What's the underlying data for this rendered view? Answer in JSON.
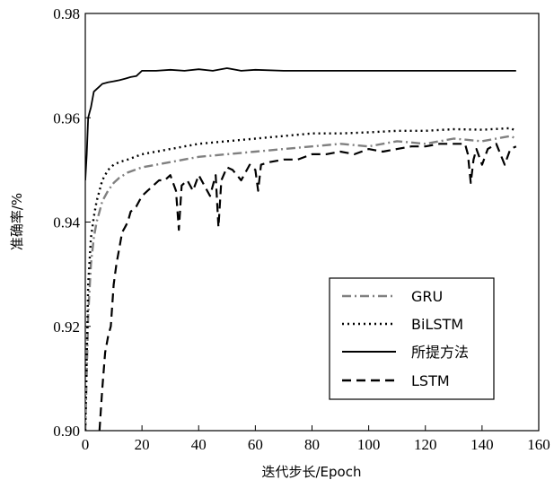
{
  "chart_data": {
    "type": "line",
    "title": "",
    "xlabel": "迭代步长/Epoch",
    "ylabel": "准确率/%",
    "xlim": [
      0,
      160
    ],
    "ylim": [
      0.9,
      0.98
    ],
    "x_ticks": [
      "0",
      "20",
      "40",
      "60",
      "80",
      "100",
      "120",
      "140",
      "160"
    ],
    "y_ticks": [
      "0.90",
      "0.92",
      "0.94",
      "0.96",
      "0.98"
    ],
    "x_tick_values": [
      0,
      20,
      40,
      60,
      80,
      100,
      120,
      140,
      160
    ],
    "y_tick_values": [
      0.9,
      0.92,
      0.94,
      0.96,
      0.98
    ],
    "grid": false,
    "legend_position": "bottom-right",
    "series": [
      {
        "name": "GRU",
        "color": "#808080",
        "dash": "dash-dot",
        "x": [
          0,
          1,
          2,
          3,
          4,
          5,
          6,
          8,
          10,
          12,
          15,
          20,
          25,
          30,
          40,
          50,
          60,
          70,
          80,
          90,
          100,
          110,
          120,
          130,
          140,
          150,
          152
        ],
        "y": [
          0.9,
          0.922,
          0.932,
          0.937,
          0.94,
          0.942,
          0.944,
          0.946,
          0.9475,
          0.9485,
          0.9495,
          0.9505,
          0.951,
          0.9515,
          0.9525,
          0.953,
          0.9535,
          0.954,
          0.9545,
          0.955,
          0.9545,
          0.9555,
          0.955,
          0.956,
          0.9555,
          0.9565,
          0.956
        ]
      },
      {
        "name": "BiLSTM",
        "color": "#000000",
        "dash": "dotted",
        "x": [
          0,
          1,
          2,
          3,
          4,
          5,
          6,
          8,
          10,
          12,
          15,
          20,
          25,
          30,
          40,
          50,
          60,
          70,
          80,
          90,
          100,
          110,
          120,
          130,
          140,
          150,
          152
        ],
        "y": [
          0.9,
          0.928,
          0.937,
          0.941,
          0.944,
          0.946,
          0.948,
          0.95,
          0.951,
          0.9515,
          0.952,
          0.953,
          0.9535,
          0.954,
          0.955,
          0.9555,
          0.956,
          0.9565,
          0.957,
          0.957,
          0.9572,
          0.9575,
          0.9575,
          0.9578,
          0.9577,
          0.958,
          0.9575
        ]
      },
      {
        "name": "所提方法",
        "color": "#000000",
        "dash": "solid",
        "x": [
          0,
          0.5,
          1,
          1.5,
          2,
          3,
          4,
          5,
          6,
          8,
          10,
          12,
          14,
          16,
          18,
          20,
          25,
          30,
          35,
          40,
          45,
          50,
          55,
          60,
          70,
          80,
          90,
          100,
          110,
          120,
          130,
          140,
          150,
          152
        ],
        "y": [
          0.948,
          0.953,
          0.96,
          0.961,
          0.962,
          0.965,
          0.9655,
          0.966,
          0.9665,
          0.9668,
          0.967,
          0.9672,
          0.9675,
          0.9678,
          0.968,
          0.969,
          0.969,
          0.9692,
          0.969,
          0.9693,
          0.969,
          0.9695,
          0.969,
          0.9692,
          0.969,
          0.969,
          0.969,
          0.969,
          0.969,
          0.969,
          0.969,
          0.969,
          0.969,
          0.969
        ]
      },
      {
        "name": "LSTM",
        "color": "#000000",
        "dash": "dashed",
        "x": [
          5,
          6,
          7,
          8,
          9,
          10,
          11,
          12,
          13,
          14,
          15,
          16,
          18,
          20,
          22,
          24,
          26,
          28,
          30,
          32,
          33,
          34,
          36,
          38,
          40,
          42,
          44,
          46,
          47,
          48,
          50,
          52,
          55,
          58,
          60,
          61,
          62,
          65,
          70,
          75,
          80,
          85,
          90,
          95,
          100,
          105,
          110,
          115,
          120,
          125,
          130,
          134,
          135,
          136,
          137,
          138,
          140,
          142,
          145,
          148,
          150,
          152
        ],
        "y": [
          0.9,
          0.908,
          0.915,
          0.918,
          0.92,
          0.928,
          0.932,
          0.935,
          0.938,
          0.939,
          0.94,
          0.942,
          0.943,
          0.945,
          0.946,
          0.947,
          0.948,
          0.948,
          0.949,
          0.946,
          0.9385,
          0.947,
          0.948,
          0.946,
          0.949,
          0.947,
          0.945,
          0.949,
          0.939,
          0.948,
          0.9505,
          0.95,
          0.948,
          0.951,
          0.95,
          0.946,
          0.951,
          0.9515,
          0.952,
          0.952,
          0.953,
          0.953,
          0.9535,
          0.953,
          0.954,
          0.9535,
          0.954,
          0.9545,
          0.9545,
          0.955,
          0.955,
          0.955,
          0.953,
          0.9475,
          0.952,
          0.954,
          0.951,
          0.954,
          0.955,
          0.951,
          0.954,
          0.9545
        ]
      }
    ]
  }
}
